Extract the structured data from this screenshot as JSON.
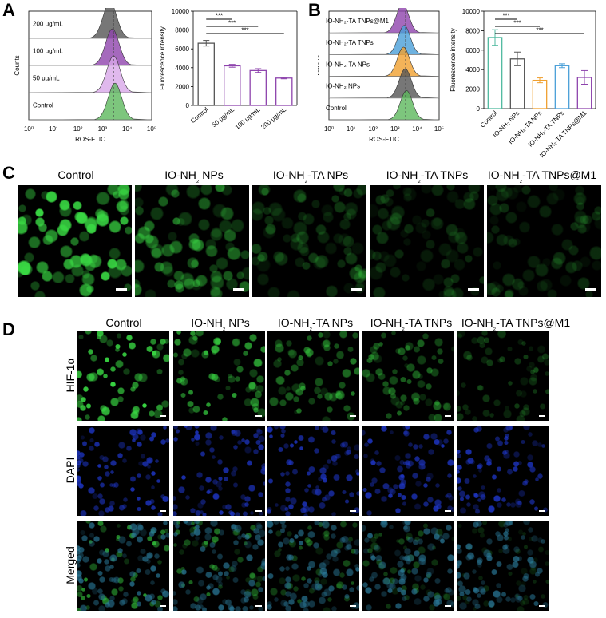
{
  "panel_letters": {
    "a": "A",
    "b": "B",
    "c": "C",
    "d": "D"
  },
  "colors": {
    "control": "#5cb85c",
    "purple": "#8e44ad",
    "light_purple": "#d8a8e8",
    "grey": "#555555",
    "orange": "#f0a030",
    "blue": "#4a9fd8",
    "teal": "#4fb99f",
    "cell_green": "#39d843",
    "dapi_blue": "#1e36c8"
  },
  "chart_data": [
    {
      "id": "A-flow",
      "type": "area",
      "xlabel": "ROS-FTIC",
      "ylabel": "Counts",
      "x_tick_labels": [
        "10⁰",
        "10¹",
        "10²",
        "10³",
        "10⁴",
        "10⁵"
      ],
      "x_scale": "log",
      "xlim": [
        1,
        100000
      ],
      "series": [
        {
          "name": "200 μg/mL",
          "peak": 2000
        },
        {
          "name": "100 μg/mL",
          "peak": 2500
        },
        {
          "name": "50 μg/mL",
          "peak": 2800
        },
        {
          "name": "Control",
          "peak": 3200
        }
      ],
      "reference_line": 2800
    },
    {
      "id": "A-bar",
      "type": "bar",
      "categories": [
        "Control",
        "50 μg/mL",
        "100 μg/mL",
        "200 μg/mL"
      ],
      "values": [
        6600,
        4200,
        3700,
        2900
      ],
      "errors": [
        300,
        150,
        200,
        80
      ],
      "ylabel": "Fluorescence intensity",
      "ylim": [
        0,
        10000
      ],
      "y_ticks": [
        0,
        2000,
        4000,
        6000,
        8000,
        10000
      ],
      "significance": [
        {
          "from": 0,
          "to": 1,
          "label": "***"
        },
        {
          "from": 0,
          "to": 2,
          "label": "***"
        },
        {
          "from": 0,
          "to": 3,
          "label": "***"
        }
      ]
    },
    {
      "id": "B-flow",
      "type": "area",
      "xlabel": "ROS-FTIC",
      "ylabel": "Counts",
      "x_tick_labels": [
        "10⁰",
        "10¹",
        "10²",
        "10³",
        "10⁴",
        "10⁵"
      ],
      "x_scale": "log",
      "xlim": [
        1,
        100000
      ],
      "series": [
        {
          "name": "IO-NH₂-TA TNPs@M1",
          "peak": 2200
        },
        {
          "name": "IO-NH₂-TA TNPs",
          "peak": 2600
        },
        {
          "name": "IO-NH₂-TA NPs",
          "peak": 2400
        },
        {
          "name": "IO-NH₂ NPs",
          "peak": 2900
        },
        {
          "name": "Control",
          "peak": 3300
        }
      ],
      "reference_line": 3000
    },
    {
      "id": "B-bar",
      "type": "bar",
      "categories": [
        "Control",
        "IO-NH₂ NPs",
        "IO-NH₂-TA NPs",
        "IO-NH₂-TA TNPs",
        "IO-NH₂-TA TNPs@M1"
      ],
      "values": [
        7300,
        5100,
        2900,
        4400,
        3200
      ],
      "errors": [
        800,
        700,
        250,
        200,
        700
      ],
      "ylabel": "Fluorescence intensity",
      "ylim": [
        0,
        10000
      ],
      "y_ticks": [
        0,
        2000,
        4000,
        6000,
        8000,
        10000
      ],
      "significance": [
        {
          "from": 0,
          "to": 1,
          "label": "***"
        },
        {
          "from": 0,
          "to": 2,
          "label": "***"
        },
        {
          "from": 0,
          "to": 4,
          "label": "***"
        }
      ]
    }
  ],
  "panel_c": {
    "titles": [
      "Control",
      "IO-NH",
      "₂",
      " NPs",
      "IO-NH",
      "₂",
      "-TA NPs",
      "IO-NH",
      "₂",
      "-TA TNPs",
      "IO-NH",
      "₂",
      "-TA TNPs@M1"
    ],
    "intensity": [
      1.0,
      0.55,
      0.3,
      0.22,
      0.2
    ]
  },
  "panel_d": {
    "row_labels": [
      "HIF-1α",
      "DAPI",
      "Merged"
    ],
    "intensity": [
      1.0,
      0.75,
      0.55,
      0.45,
      0.3
    ]
  }
}
